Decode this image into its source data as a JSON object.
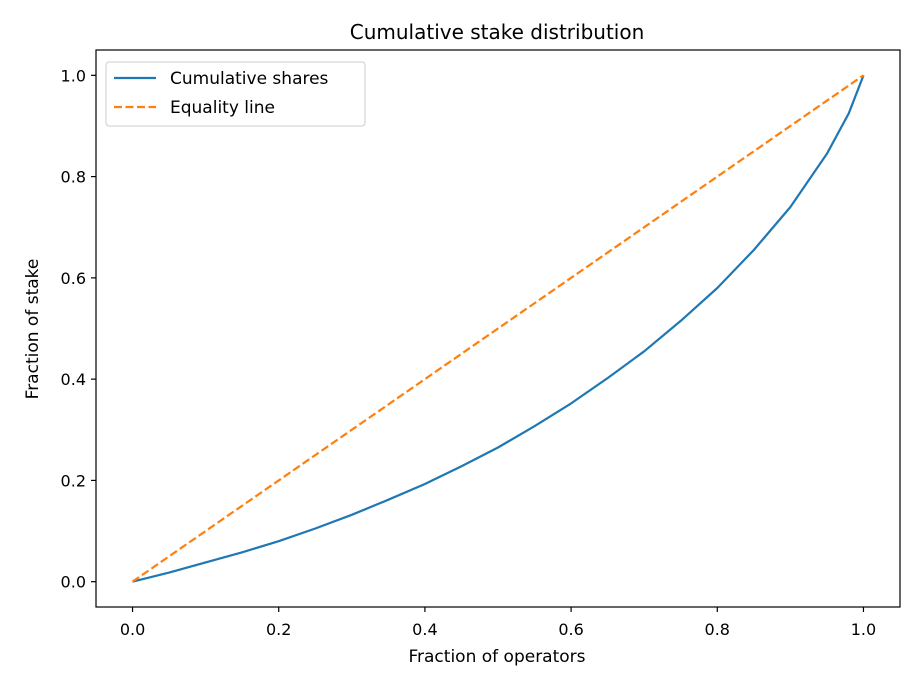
{
  "chart_data": {
    "type": "line",
    "title": "Cumulative stake distribution",
    "xlabel": "Fraction of operators",
    "ylabel": "Fraction of stake",
    "xlim": [
      -0.05,
      1.05
    ],
    "ylim": [
      -0.05,
      1.05
    ],
    "xticks": [
      0.0,
      0.2,
      0.4,
      0.6,
      0.8,
      1.0
    ],
    "xtick_labels": [
      "0.0",
      "0.2",
      "0.4",
      "0.6",
      "0.8",
      "1.0"
    ],
    "yticks": [
      0.0,
      0.2,
      0.4,
      0.6,
      0.8,
      1.0
    ],
    "ytick_labels": [
      "0.0",
      "0.2",
      "0.4",
      "0.6",
      "0.8",
      "1.0"
    ],
    "grid": false,
    "legend_position": "top-left",
    "series": [
      {
        "name": "Cumulative shares",
        "color": "#1f77b4",
        "style": "solid",
        "x": [
          0.0,
          0.05,
          0.1,
          0.15,
          0.2,
          0.25,
          0.3,
          0.35,
          0.4,
          0.45,
          0.5,
          0.55,
          0.6,
          0.65,
          0.7,
          0.75,
          0.8,
          0.85,
          0.9,
          0.95,
          0.98,
          1.0
        ],
        "y": [
          0.0,
          0.018,
          0.038,
          0.058,
          0.08,
          0.105,
          0.132,
          0.162,
          0.193,
          0.228,
          0.265,
          0.307,
          0.352,
          0.402,
          0.455,
          0.515,
          0.58,
          0.655,
          0.74,
          0.845,
          0.925,
          1.0
        ]
      },
      {
        "name": "Equality line",
        "color": "#ff7f0e",
        "style": "dashed",
        "x": [
          0.0,
          1.0
        ],
        "y": [
          0.0,
          1.0
        ]
      }
    ]
  }
}
